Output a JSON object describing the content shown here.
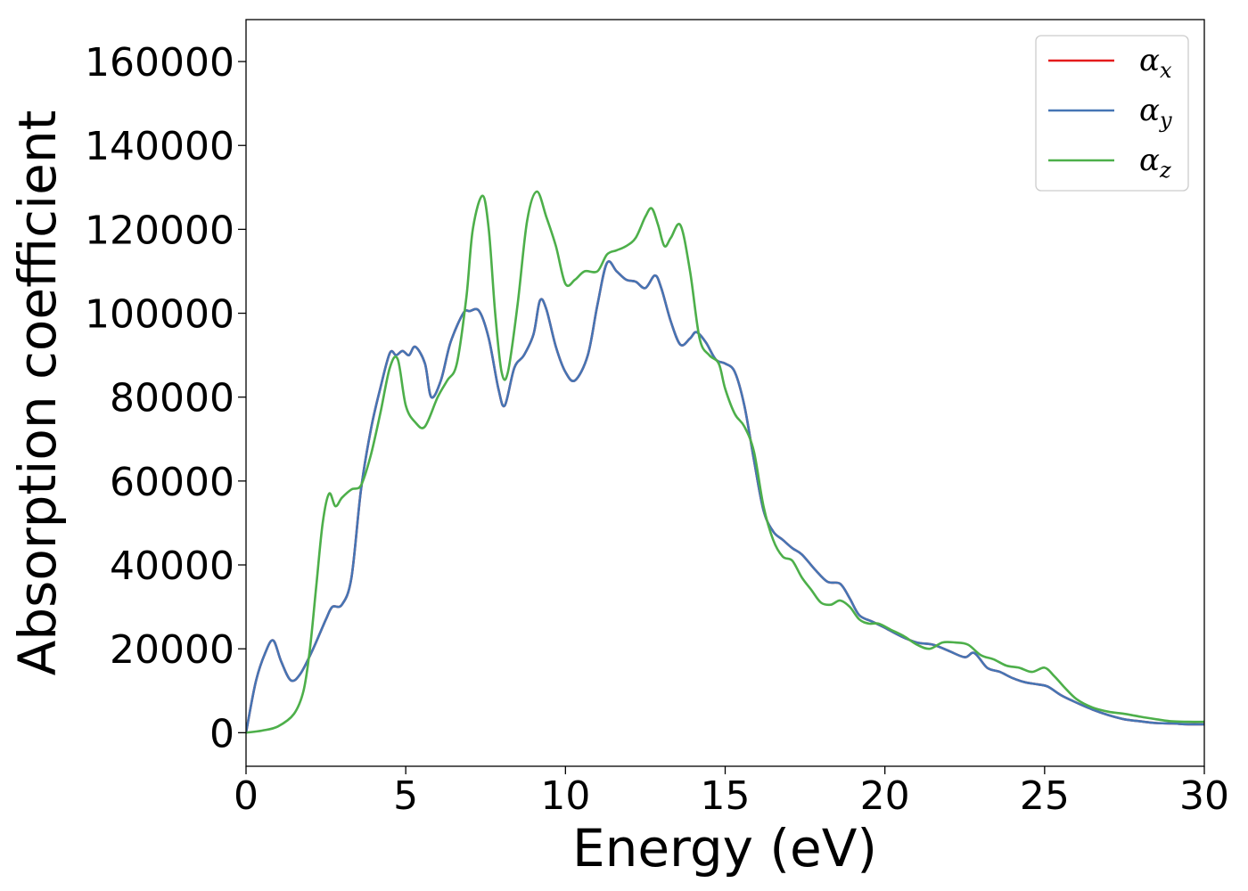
{
  "chart_data": {
    "type": "line",
    "xlabel": "Energy (eV)",
    "ylabel": "Absorption coefficient",
    "xlim": [
      0,
      30
    ],
    "ylim": [
      -8000,
      170000
    ],
    "xticks": [
      0,
      5,
      10,
      15,
      20,
      25,
      30
    ],
    "yticks": [
      0,
      20000,
      40000,
      60000,
      80000,
      100000,
      120000,
      140000,
      160000
    ],
    "xtick_labels": [
      "0",
      "5",
      "10",
      "15",
      "20",
      "25",
      "30"
    ],
    "ytick_labels": [
      "0",
      "20000",
      "40000",
      "60000",
      "80000",
      "100000",
      "120000",
      "140000",
      "160000"
    ],
    "grid": false,
    "legend": "top-right",
    "series": [
      {
        "name": "α_x",
        "legend_base": "α",
        "legend_sub": "x",
        "color": "#e41a1c",
        "x": [
          0,
          0.3,
          0.6,
          0.85,
          1.1,
          1.4,
          1.7,
          2.1,
          2.5,
          2.7,
          3.0,
          3.3,
          3.6,
          3.9,
          4.2,
          4.5,
          4.7,
          4.9,
          5.1,
          5.3,
          5.6,
          5.8,
          6.1,
          6.4,
          6.8,
          7.0,
          7.3,
          7.6,
          7.9,
          8.1,
          8.4,
          8.7,
          9.0,
          9.2,
          9.4,
          9.7,
          10.0,
          10.3,
          10.7,
          11.0,
          11.3,
          11.6,
          11.9,
          12.2,
          12.5,
          12.8,
          13.0,
          13.3,
          13.6,
          13.9,
          14.1,
          14.4,
          14.7,
          15.0,
          15.3,
          15.6,
          15.9,
          16.2,
          16.5,
          16.8,
          17.1,
          17.4,
          17.8,
          18.2,
          18.6,
          18.9,
          19.2,
          19.6,
          20.0,
          20.5,
          21.0,
          21.5,
          22.0,
          22.5,
          22.8,
          23.2,
          23.6,
          24.0,
          24.4,
          24.8,
          25.1,
          25.5,
          25.9,
          26.5,
          27.0,
          27.5,
          28.0,
          28.5,
          29.0,
          29.5,
          30.0
        ],
        "y": [
          0,
          12000,
          19000,
          22000,
          17000,
          12500,
          14000,
          20000,
          27000,
          30000,
          30500,
          37000,
          58000,
          72000,
          82000,
          90500,
          90000,
          91000,
          90000,
          92000,
          88000,
          80000,
          84000,
          93000,
          100000,
          100500,
          100500,
          94000,
          82000,
          78000,
          87000,
          90000,
          95000,
          103000,
          101000,
          92000,
          86000,
          84000,
          90000,
          102000,
          112000,
          110000,
          108000,
          107500,
          106000,
          109000,
          106000,
          98000,
          92500,
          94000,
          95500,
          93000,
          89000,
          88000,
          86000,
          78000,
          65000,
          53000,
          48000,
          46000,
          44000,
          42500,
          39000,
          36000,
          35500,
          32000,
          28000,
          26500,
          25000,
          23000,
          21500,
          21000,
          19500,
          18000,
          19000,
          15500,
          14500,
          13000,
          12000,
          11500,
          11000,
          9000,
          7500,
          5500,
          4200,
          3200,
          2700,
          2300,
          2200,
          2000,
          2000
        ]
      },
      {
        "name": "α_y",
        "legend_base": "α",
        "legend_sub": "y",
        "color": "#4575b4",
        "x": [
          0,
          0.3,
          0.6,
          0.85,
          1.1,
          1.4,
          1.7,
          2.1,
          2.5,
          2.7,
          3.0,
          3.3,
          3.6,
          3.9,
          4.2,
          4.5,
          4.7,
          4.9,
          5.1,
          5.3,
          5.6,
          5.8,
          6.1,
          6.4,
          6.8,
          7.0,
          7.3,
          7.6,
          7.9,
          8.1,
          8.4,
          8.7,
          9.0,
          9.2,
          9.4,
          9.7,
          10.0,
          10.3,
          10.7,
          11.0,
          11.3,
          11.6,
          11.9,
          12.2,
          12.5,
          12.8,
          13.0,
          13.3,
          13.6,
          13.9,
          14.1,
          14.4,
          14.7,
          15.0,
          15.3,
          15.6,
          15.9,
          16.2,
          16.5,
          16.8,
          17.1,
          17.4,
          17.8,
          18.2,
          18.6,
          18.9,
          19.2,
          19.6,
          20.0,
          20.5,
          21.0,
          21.5,
          22.0,
          22.5,
          22.8,
          23.2,
          23.6,
          24.0,
          24.4,
          24.8,
          25.1,
          25.5,
          25.9,
          26.5,
          27.0,
          27.5,
          28.0,
          28.5,
          29.0,
          29.5,
          30.0
        ],
        "y": [
          0,
          12000,
          19000,
          22000,
          17000,
          12500,
          14000,
          20000,
          27000,
          30000,
          30500,
          37000,
          58000,
          72000,
          82000,
          90500,
          90000,
          91000,
          90000,
          92000,
          88000,
          80000,
          84000,
          93000,
          100000,
          100500,
          100500,
          94000,
          82000,
          78000,
          87000,
          90000,
          95000,
          103000,
          101000,
          92000,
          86000,
          84000,
          90000,
          102000,
          112000,
          110000,
          108000,
          107500,
          106000,
          109000,
          106000,
          98000,
          92500,
          94000,
          95500,
          93000,
          89000,
          88000,
          86000,
          78000,
          65000,
          53000,
          48000,
          46000,
          44000,
          42500,
          39000,
          36000,
          35500,
          32000,
          28000,
          26500,
          25000,
          23000,
          21500,
          21000,
          19500,
          18000,
          19000,
          15500,
          14500,
          13000,
          12000,
          11500,
          11000,
          9000,
          7500,
          5500,
          4200,
          3200,
          2700,
          2300,
          2200,
          2000,
          2000
        ]
      },
      {
        "name": "α_z",
        "legend_base": "α",
        "legend_sub": "z",
        "color": "#4daf4a",
        "x": [
          0,
          0.5,
          1.0,
          1.5,
          1.8,
          2.0,
          2.2,
          2.4,
          2.6,
          2.8,
          3.0,
          3.3,
          3.6,
          3.9,
          4.2,
          4.5,
          4.75,
          5.0,
          5.3,
          5.6,
          6.0,
          6.3,
          6.6,
          6.9,
          7.1,
          7.4,
          7.6,
          7.8,
          8.0,
          8.2,
          8.5,
          8.8,
          9.1,
          9.4,
          9.7,
          10.0,
          10.3,
          10.6,
          11.0,
          11.3,
          11.6,
          11.9,
          12.2,
          12.5,
          12.7,
          12.9,
          13.1,
          13.3,
          13.6,
          13.9,
          14.2,
          14.5,
          14.8,
          15.0,
          15.3,
          15.6,
          15.9,
          16.2,
          16.5,
          16.8,
          17.1,
          17.4,
          17.7,
          18.0,
          18.3,
          18.6,
          18.9,
          19.2,
          19.5,
          19.8,
          20.2,
          20.6,
          21.0,
          21.4,
          21.8,
          22.2,
          22.6,
          23.0,
          23.4,
          23.8,
          24.2,
          24.6,
          25.0,
          25.3,
          25.6,
          26.0,
          26.5,
          27.0,
          27.5,
          28.0,
          28.5,
          29.0,
          29.5,
          30.0
        ],
        "y": [
          0,
          500,
          1500,
          4500,
          10000,
          20000,
          35000,
          50000,
          57000,
          54000,
          56000,
          58000,
          59000,
          66000,
          76000,
          87000,
          89000,
          78000,
          74000,
          73000,
          80000,
          84000,
          88000,
          104000,
          120000,
          128000,
          120000,
          100000,
          86000,
          86000,
          102000,
          122000,
          129000,
          123000,
          116000,
          107000,
          108000,
          110000,
          110000,
          114000,
          115000,
          116000,
          118000,
          123000,
          125000,
          121000,
          116000,
          118000,
          121000,
          110000,
          94000,
          90000,
          88000,
          82000,
          76000,
          73000,
          67000,
          54000,
          46000,
          42000,
          41000,
          37000,
          34000,
          31000,
          30500,
          31500,
          30000,
          27000,
          26000,
          26000,
          24500,
          23000,
          21000,
          20000,
          21500,
          21500,
          21000,
          18500,
          17500,
          16000,
          15500,
          14500,
          15500,
          13500,
          11000,
          8000,
          6000,
          5000,
          4500,
          3800,
          3200,
          2700,
          2600,
          2600
        ]
      }
    ]
  }
}
